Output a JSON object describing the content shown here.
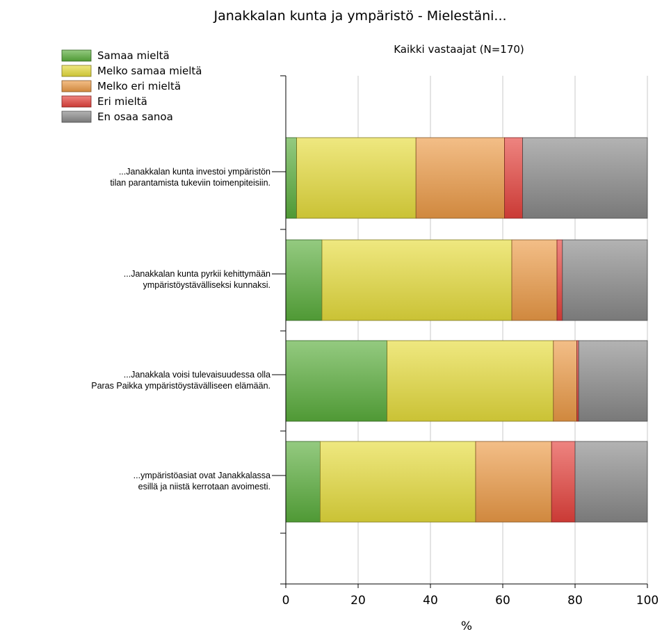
{
  "chart_data": {
    "type": "bar",
    "orientation": "horizontal",
    "stacked": true,
    "title": "Janakkalan kunta ja ympäristö - Mielestäni...",
    "subtitle": "Kaikki vastaajat (N=170)",
    "xlabel": "%",
    "xlim": [
      0,
      100
    ],
    "x_ticks": [
      "0",
      "20",
      "40",
      "60",
      "80",
      "100"
    ],
    "grid": true,
    "legend_position": "top-left",
    "categories": [
      [
        "...Janakkalan kunta investoi ympäristön",
        "tilan parantamista tukeviin toimenpiteisiin."
      ],
      [
        "...Janakkalan kunta pyrkii kehittymään",
        "ympäristöystävälliseksi kunnaksi."
      ],
      [
        "...Janakkala voisi tulevaisuudessa olla",
        "Paras Paikka ympäristöystävälliseen elämään."
      ],
      [
        "...ympäristöasiat ovat Janakkalassa",
        "esillä ja niistä kerrotaan avoimesti."
      ]
    ],
    "series": [
      {
        "name": "Samaa mieltä",
        "color": "#5aae3c",
        "values": [
          3,
          10,
          28,
          9.5
        ]
      },
      {
        "name": "Melko samaa mieltä",
        "color": "#e6dc3c",
        "values": [
          33,
          52.5,
          46,
          43
        ]
      },
      {
        "name": "Melko eri mieltä",
        "color": "#ec9b47",
        "values": [
          24.5,
          12.5,
          6.5,
          21
        ]
      },
      {
        "name": "Eri mieltä",
        "color": "#e5423c",
        "values": [
          5,
          1.5,
          0.5,
          6.5
        ]
      },
      {
        "name": "En osaa sanoa",
        "color": "#8a8a8a",
        "values": [
          34.5,
          23.5,
          19,
          20
        ]
      }
    ]
  }
}
